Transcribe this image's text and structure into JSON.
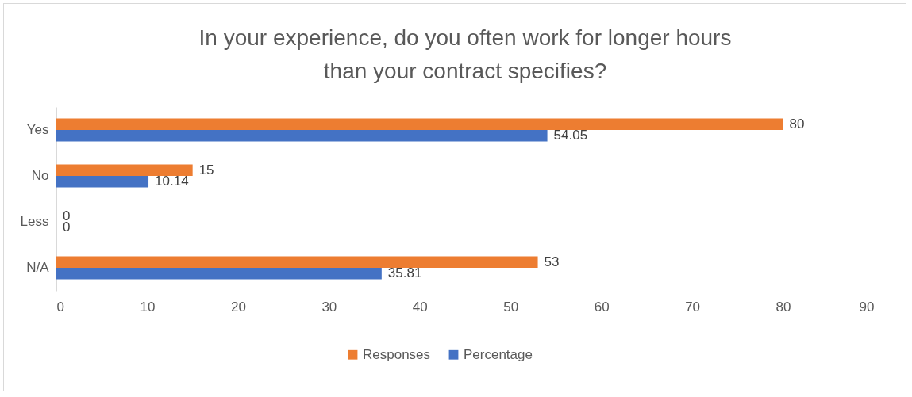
{
  "chart_data": {
    "type": "bar",
    "orientation": "horizontal",
    "title": "In your experience, do you often work for longer hours than your contract specifies?",
    "categories": [
      "Yes",
      "No",
      "Less",
      "N/A"
    ],
    "series": [
      {
        "name": "Responses",
        "color": "#ed7d31",
        "values": [
          80,
          15,
          0,
          53
        ]
      },
      {
        "name": "Percentage",
        "color": "#4472c4",
        "values": [
          54.05,
          10.14,
          0,
          35.81
        ]
      }
    ],
    "xlim": [
      0,
      90
    ],
    "xticks": [
      0,
      10,
      20,
      30,
      40,
      50,
      60,
      70,
      80,
      90
    ],
    "grid": false,
    "legend": "bottom",
    "data_labels": true
  }
}
